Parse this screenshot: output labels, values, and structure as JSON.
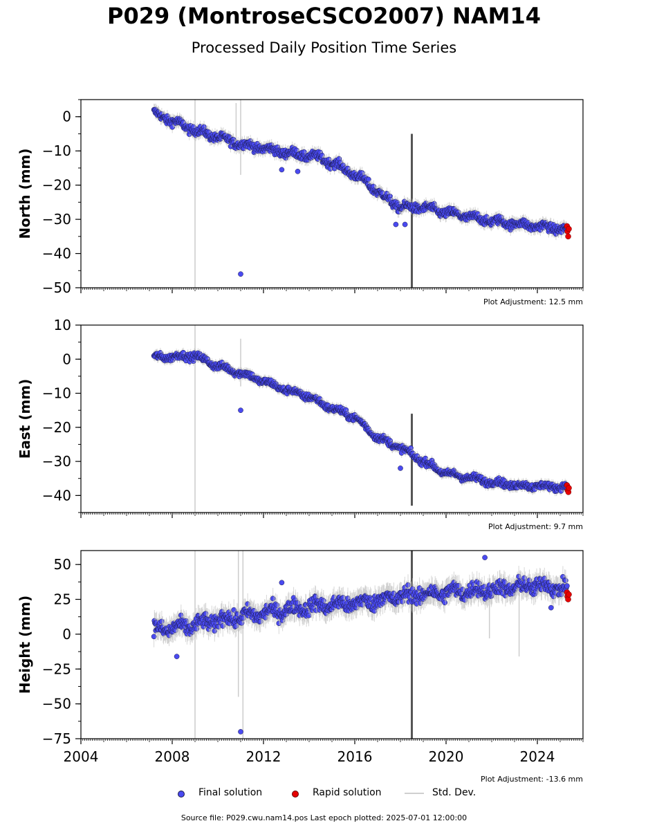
{
  "header": {
    "title": "P029 (MontroseCSCO2007) NAM14",
    "subtitle": "Processed Daily Position Time Series"
  },
  "legend": {
    "final_label": "Final solution",
    "rapid_label": "Rapid solution",
    "std_label": "Std. Dev."
  },
  "footer": {
    "source": "Source file: P029.cwu.nam14.pos  Last epoch plotted: 2025-07-01 12:00:00"
  },
  "colors": {
    "final": "#4a4af0",
    "rapid": "#e60000",
    "std": "#bdbdbd",
    "marker_edge": "#1a1a4a"
  },
  "chart_data": [
    {
      "type": "scatter",
      "ylabel": "North (mm)",
      "adjustment": "Plot Adjustment: 12.5 mm",
      "xlim": [
        2004,
        2026
      ],
      "ylim": [
        -50,
        5
      ],
      "yticks": [
        0,
        -10,
        -20,
        -30,
        -40,
        -50
      ],
      "trend": [
        [
          2007.2,
          1.0
        ],
        [
          2009.0,
          -4.0
        ],
        [
          2011.0,
          -8.0
        ],
        [
          2013.0,
          -10.5
        ],
        [
          2014.5,
          -12.0
        ],
        [
          2015.5,
          -15.0
        ],
        [
          2016.5,
          -19.0
        ],
        [
          2017.2,
          -23.0
        ],
        [
          2018.0,
          -26.5
        ],
        [
          2019.0,
          -26.5
        ],
        [
          2020.0,
          -28.0
        ],
        [
          2022.0,
          -30.5
        ],
        [
          2024.0,
          -32.0
        ],
        [
          2025.3,
          -33.0
        ]
      ],
      "noise": 1.6,
      "outliers": [
        [
          2011.0,
          -46.0
        ],
        [
          2017.8,
          -31.5
        ],
        [
          2018.2,
          -31.5
        ],
        [
          2012.8,
          -15.5
        ],
        [
          2013.5,
          -16.0
        ]
      ],
      "rapid_points": [
        [
          2025.3,
          -32.0
        ],
        [
          2025.32,
          -33.5
        ],
        [
          2025.35,
          -35.0
        ],
        [
          2025.38,
          -32.8
        ]
      ],
      "std_spikes": [
        [
          2009.0,
          -50,
          5
        ],
        [
          2011.0,
          -17.0,
          5
        ],
        [
          2010.8,
          -10.0,
          4
        ],
        [
          2018.5,
          -50,
          -5
        ]
      ]
    },
    {
      "type": "scatter",
      "ylabel": "East (mm)",
      "adjustment": "Plot Adjustment: 9.7 mm",
      "xlim": [
        2004,
        2026
      ],
      "ylim": [
        -45,
        10
      ],
      "yticks": [
        10,
        0,
        -10,
        -20,
        -30,
        -40
      ],
      "trend": [
        [
          2007.2,
          0.5
        ],
        [
          2009.0,
          1.0
        ],
        [
          2010.0,
          -2.0
        ],
        [
          2011.0,
          -4.0
        ],
        [
          2012.0,
          -6.5
        ],
        [
          2013.0,
          -9.0
        ],
        [
          2014.0,
          -11.0
        ],
        [
          2015.0,
          -14.5
        ],
        [
          2016.0,
          -17.0
        ],
        [
          2017.0,
          -23.0
        ],
        [
          2018.0,
          -26.0
        ],
        [
          2019.0,
          -30.0
        ],
        [
          2020.0,
          -33.5
        ],
        [
          2022.0,
          -36.0
        ],
        [
          2023.0,
          -37.0
        ],
        [
          2025.3,
          -37.5
        ]
      ],
      "noise": 1.3,
      "outliers": [
        [
          2011.0,
          -15.0
        ],
        [
          2018.0,
          -32.0
        ]
      ],
      "rapid_points": [
        [
          2025.3,
          -37.0
        ],
        [
          2025.33,
          -38.5
        ],
        [
          2025.36,
          -39.0
        ],
        [
          2025.38,
          -37.8
        ]
      ],
      "std_spikes": [
        [
          2009.0,
          -45,
          10
        ],
        [
          2011.0,
          -8.0,
          6
        ],
        [
          2018.5,
          -43.0,
          -16.0
        ]
      ]
    },
    {
      "type": "scatter",
      "ylabel": "Height (mm)",
      "adjustment": "Plot Adjustment: -13.6 mm",
      "xlim": [
        2004,
        2026
      ],
      "ylim": [
        -75,
        60
      ],
      "yticks": [
        50,
        25,
        0,
        -25,
        -50,
        -75
      ],
      "xticks": [
        2004,
        2008,
        2012,
        2016,
        2020,
        2024
      ],
      "trend": [
        [
          2007.2,
          3.0
        ],
        [
          2008.5,
          5.0
        ],
        [
          2010.0,
          10.0
        ],
        [
          2012.0,
          15.0
        ],
        [
          2014.0,
          20.0
        ],
        [
          2016.0,
          22.0
        ],
        [
          2018.0,
          27.0
        ],
        [
          2020.0,
          30.0
        ],
        [
          2022.0,
          32.0
        ],
        [
          2024.0,
          35.0
        ],
        [
          2025.3,
          33.0
        ]
      ],
      "noise": 7.0,
      "outliers": [
        [
          2011.0,
          -70.0
        ],
        [
          2008.2,
          -16.0
        ],
        [
          2021.7,
          55.0
        ],
        [
          2024.6,
          19.0
        ],
        [
          2012.8,
          37.0
        ]
      ],
      "rapid_points": [
        [
          2025.3,
          30.0
        ],
        [
          2025.32,
          27.0
        ],
        [
          2025.35,
          25.0
        ],
        [
          2025.38,
          28.5
        ]
      ],
      "std_spikes": [
        [
          2009.0,
          -75,
          60
        ],
        [
          2010.9,
          -45.0,
          60
        ],
        [
          2011.1,
          -75,
          60
        ],
        [
          2018.5,
          -75,
          60
        ],
        [
          2021.9,
          -3.0,
          40
        ],
        [
          2023.2,
          -16.0,
          30
        ]
      ]
    }
  ]
}
